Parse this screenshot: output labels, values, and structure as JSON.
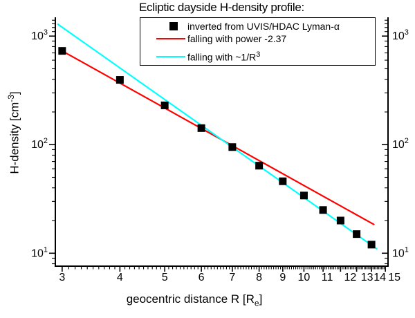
{
  "chart_data": {
    "type": "line+scatter",
    "title": "Ecliptic dayside H-density profile:",
    "xlabel": {
      "pre": "geocentric distance R [R",
      "sub": "e",
      "post": "]"
    },
    "ylabel": {
      "pre": "H-density [cm",
      "sup": "-3",
      "post": "]"
    },
    "x_scale": "log",
    "y_scale": "log",
    "x_range": [
      2.9,
      15.2
    ],
    "y_range": [
      7.6,
      1490
    ],
    "x_major_ticks": [
      3,
      4,
      5,
      6,
      7,
      8,
      9,
      10,
      11,
      12,
      13,
      14,
      15
    ],
    "x_minor_step": 0.1,
    "y_major_ticks": [
      {
        "value": 10,
        "base": "10",
        "exp": "1"
      },
      {
        "value": 100,
        "base": "10",
        "exp": "2"
      },
      {
        "value": 1000,
        "base": "10",
        "exp": "3"
      }
    ],
    "y_minor_ticks": [
      8,
      9,
      20,
      30,
      40,
      50,
      60,
      70,
      80,
      90,
      200,
      300,
      400,
      500,
      600,
      700,
      800,
      900,
      1100,
      1200,
      1300,
      1400
    ],
    "series": [
      {
        "name": "power_fit",
        "type": "line",
        "color": "#ff0000",
        "width": 2.2,
        "points": [
          [
            3,
            730
          ],
          [
            14.2,
            18.3
          ]
        ]
      },
      {
        "name": "r3_fit",
        "type": "line",
        "color": "#00ffff",
        "width": 2.2,
        "points": [
          [
            2.93,
            1295
          ],
          [
            14.4,
            10.9
          ]
        ]
      },
      {
        "name": "uvis_hdac_data",
        "type": "scatter",
        "marker": "square",
        "color": "#000000",
        "size": 11,
        "points": [
          [
            3,
            730
          ],
          [
            4,
            395
          ],
          [
            5,
            230
          ],
          [
            6,
            142
          ],
          [
            7,
            95
          ],
          [
            8,
            64
          ],
          [
            9,
            46
          ],
          [
            10,
            34
          ],
          [
            11,
            25
          ],
          [
            12,
            20
          ],
          [
            13,
            15
          ],
          [
            14,
            12
          ]
        ]
      }
    ],
    "legend": {
      "position": "top-inside",
      "items": [
        {
          "marker": "square",
          "color": "#000000",
          "label": "inverted from UVIS/HDAC Lyman-α"
        },
        {
          "marker": "line",
          "color": "#ff0000",
          "label": "falling with power -2.37"
        },
        {
          "marker": "line",
          "color": "#00ffff",
          "label_pre": "falling with ~1/R",
          "label_sup": "3"
        }
      ]
    },
    "axis_color": "#000000",
    "background": "#ffffff"
  }
}
